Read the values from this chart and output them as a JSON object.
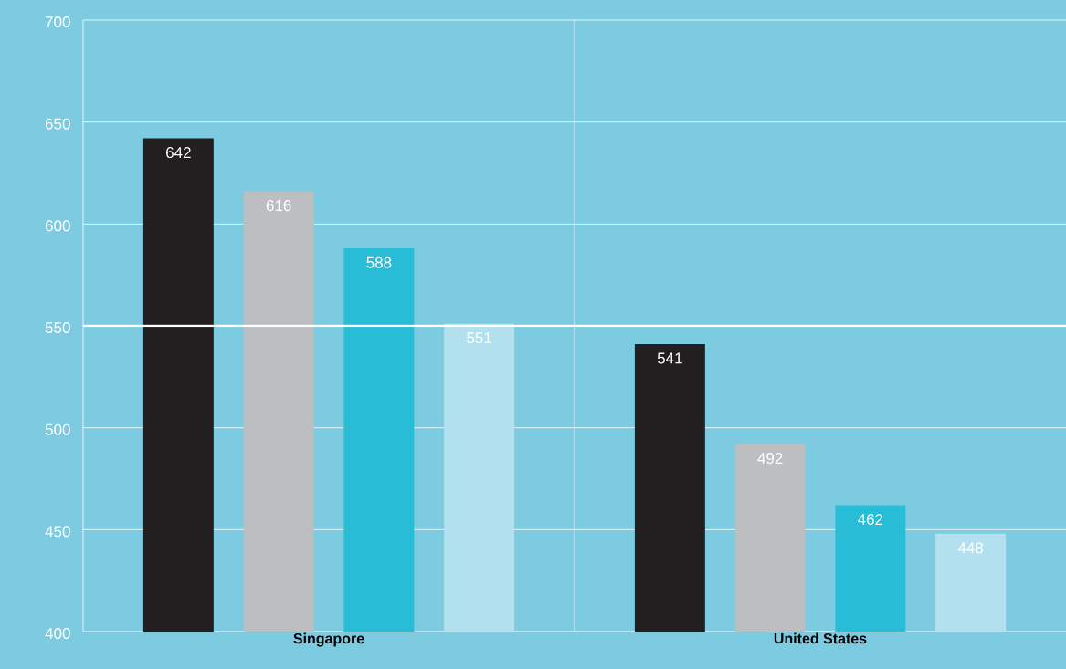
{
  "chart_data": {
    "type": "bar",
    "categories": [
      "Singapore",
      "United States"
    ],
    "series": [
      {
        "color": "#231f20",
        "values": [
          642,
          541
        ]
      },
      {
        "color": "#bcbec0",
        "values": [
          616,
          492
        ]
      },
      {
        "color": "#29bcd6",
        "values": [
          588,
          462
        ]
      },
      {
        "color": "#b2e0ee",
        "values": [
          551,
          448
        ]
      }
    ],
    "ylim": [
      400,
      700
    ],
    "yticks": [
      400,
      450,
      500,
      550,
      600,
      650,
      700
    ],
    "grid": true,
    "data_labels": true,
    "ref_lines": [
      {
        "axis": "y",
        "value": 550,
        "color": "#ffffff"
      }
    ]
  }
}
